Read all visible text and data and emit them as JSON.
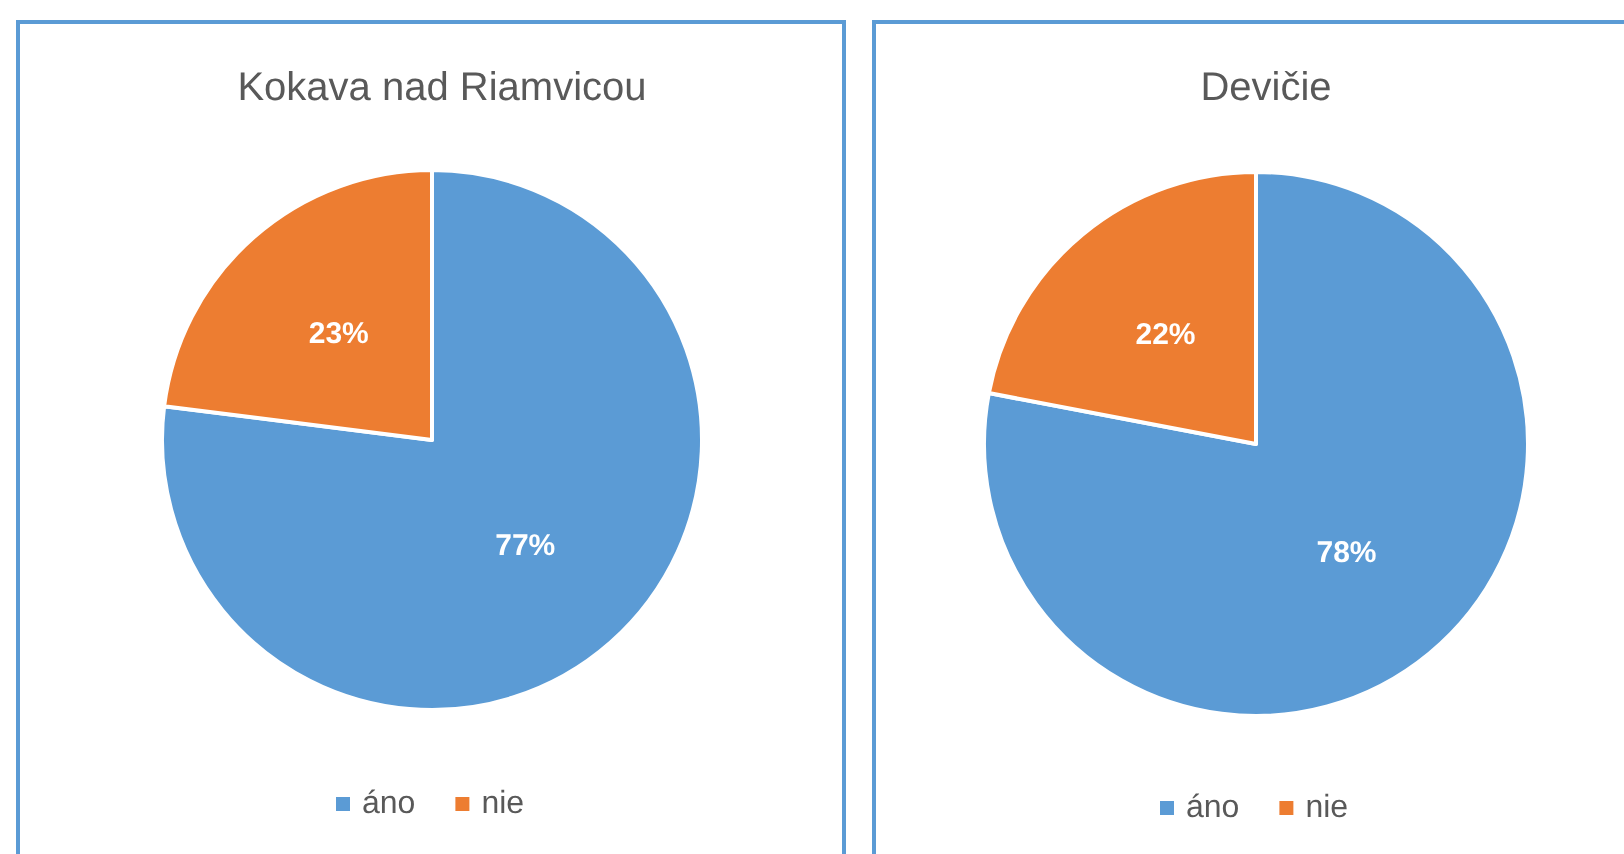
{
  "chart_data": [
    {
      "type": "pie",
      "title": "Kokava nad Riamvicou",
      "categories": [
        "áno",
        "nie"
      ],
      "values": [
        77,
        23
      ],
      "colors": [
        "#5b9bd5",
        "#ed7d31"
      ],
      "value_labels": [
        "77%",
        "23%"
      ],
      "legend": "bottom"
    },
    {
      "type": "pie",
      "title": "Devičie",
      "categories": [
        "áno",
        "nie"
      ],
      "values": [
        78,
        22
      ],
      "colors": [
        "#5b9bd5",
        "#ed7d31"
      ],
      "value_labels": [
        "78%",
        "22%"
      ],
      "legend": "bottom"
    }
  ]
}
